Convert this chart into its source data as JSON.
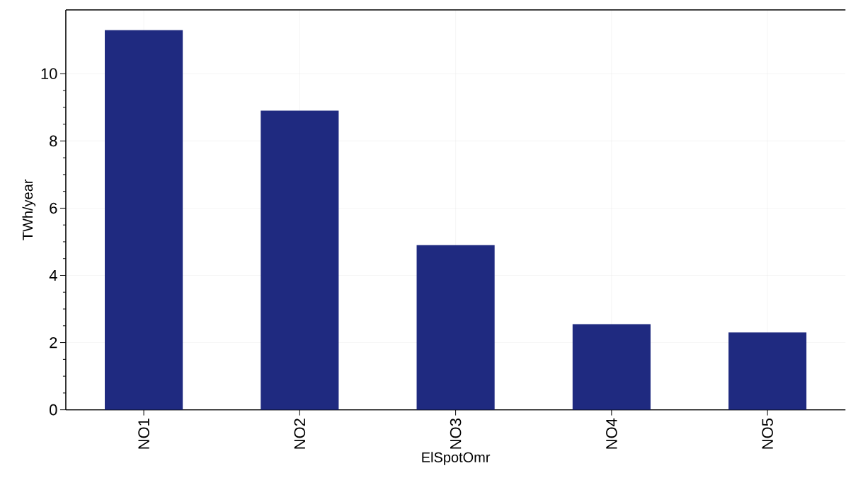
{
  "chart_data": {
    "type": "bar",
    "xlabel": "ElSpotOmr",
    "ylabel": "TWh/year",
    "categories": [
      "NO1",
      "NO2",
      "NO3",
      "NO4",
      "NO5"
    ],
    "values": [
      11.3,
      8.9,
      4.9,
      2.55,
      2.3
    ],
    "color": "#1f2a80",
    "ylim": [
      0,
      11.9
    ],
    "yticks": [
      0,
      2,
      4,
      6,
      8,
      10
    ],
    "grid": true
  }
}
